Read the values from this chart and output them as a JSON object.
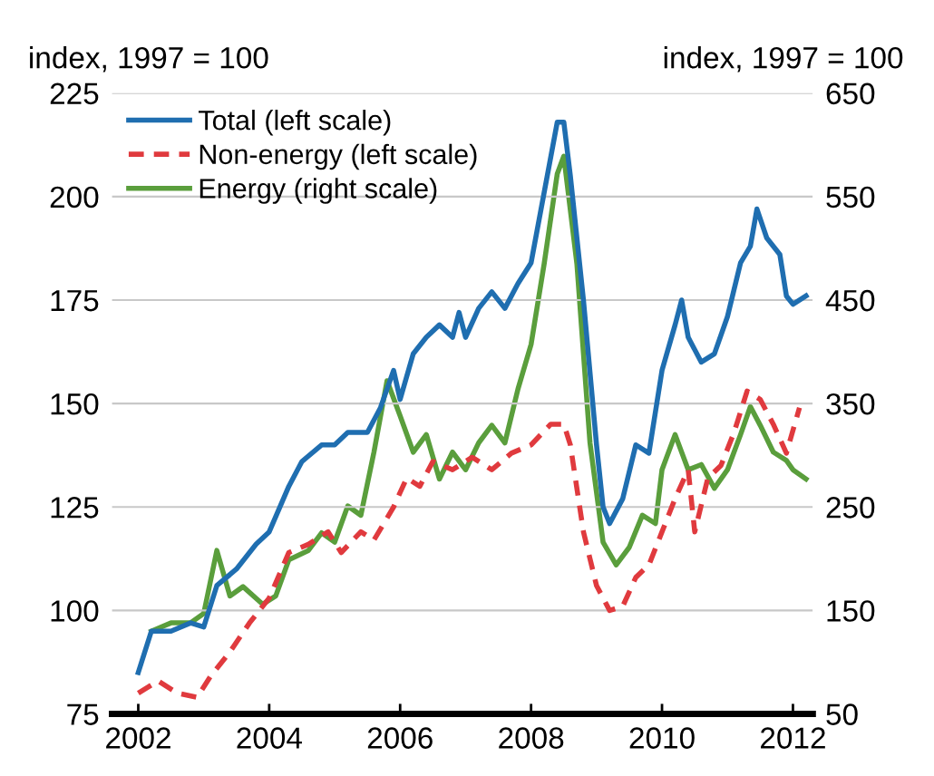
{
  "chart_data": {
    "type": "line",
    "ylabel": "index, 1997 = 100",
    "y2label": "index, 1997 = 100",
    "xlim": [
      2001.6,
      2012.3
    ],
    "xticks": [
      2002,
      2004,
      2006,
      2008,
      2010,
      2012
    ],
    "ylim": [
      75,
      225
    ],
    "yticks": [
      75,
      100,
      125,
      150,
      175,
      200,
      225
    ],
    "y2lim": [
      50,
      650
    ],
    "y2ticks": [
      50,
      150,
      250,
      350,
      450,
      550,
      650
    ],
    "grid": "y",
    "legend": "top left",
    "series": [
      {
        "name": "Total (left scale)",
        "color": "#1f6eb0",
        "line_style": "solid",
        "x": [
          2002.0,
          2002.2,
          2002.5,
          2002.8,
          2003.0,
          2003.2,
          2003.5,
          2003.8,
          2004.0,
          2004.3,
          2004.5,
          2004.8,
          2005.0,
          2005.2,
          2005.5,
          2005.7,
          2005.9,
          2006.0,
          2006.2,
          2006.4,
          2006.6,
          2006.8,
          2006.9,
          2007.0,
          2007.2,
          2007.4,
          2007.6,
          2007.8,
          2008.0,
          2008.2,
          2008.4,
          2008.5,
          2008.6,
          2008.8,
          2009.0,
          2009.1,
          2009.2,
          2009.4,
          2009.6,
          2009.8,
          2010.0,
          2010.2,
          2010.3,
          2010.4,
          2010.6,
          2010.8,
          2011.0,
          2011.2,
          2011.35,
          2011.45,
          2011.6,
          2011.8,
          2011.9,
          2012.0,
          2012.2
        ],
        "values": [
          85,
          95,
          95,
          97,
          96,
          106,
          110,
          116,
          119,
          130,
          136,
          140,
          140,
          143,
          143,
          149,
          158,
          151,
          162,
          166,
          169,
          166,
          172,
          166,
          173,
          177,
          173,
          179,
          184,
          201,
          218,
          218,
          205,
          175,
          140,
          125,
          121,
          127,
          140,
          138,
          158,
          169,
          175,
          166,
          160,
          162,
          171,
          184,
          188,
          197,
          190,
          186,
          176,
          174,
          176
        ]
      },
      {
        "name": "Non-energy (left scale)",
        "color": "#e03a3e",
        "line_style": "dashed",
        "x": [
          2002.0,
          2002.3,
          2002.6,
          2002.9,
          2003.1,
          2003.4,
          2003.7,
          2004.0,
          2004.3,
          2004.6,
          2004.9,
          2005.1,
          2005.4,
          2005.6,
          2005.9,
          2006.1,
          2006.3,
          2006.5,
          2006.8,
          2007.1,
          2007.4,
          2007.7,
          2008.0,
          2008.3,
          2008.5,
          2008.6,
          2008.8,
          2009.0,
          2009.2,
          2009.4,
          2009.6,
          2009.8,
          2010.0,
          2010.2,
          2010.4,
          2010.5,
          2010.7,
          2010.9,
          2011.1,
          2011.3,
          2011.5,
          2011.7,
          2011.9,
          2012.1
        ],
        "values": [
          80,
          83,
          80,
          79,
          84,
          90,
          97,
          103,
          114,
          116,
          119,
          114,
          119,
          117,
          125,
          132,
          130,
          136,
          134,
          137,
          134,
          138,
          140,
          145,
          145,
          140,
          119,
          106,
          100,
          101,
          108,
          111,
          119,
          127,
          134,
          119,
          132,
          135,
          143,
          153,
          151,
          145,
          138,
          149
        ]
      },
      {
        "name": "Energy (right scale)",
        "color": "#5a9e3c",
        "line_style": "solid",
        "axis": "y2",
        "x": [
          2002.2,
          2002.5,
          2002.8,
          2003.0,
          2003.2,
          2003.4,
          2003.6,
          2003.9,
          2004.1,
          2004.3,
          2004.6,
          2004.8,
          2005.0,
          2005.2,
          2005.4,
          2005.6,
          2005.8,
          2006.0,
          2006.2,
          2006.4,
          2006.6,
          2006.8,
          2007.0,
          2007.2,
          2007.4,
          2007.6,
          2007.8,
          2008.0,
          2008.2,
          2008.4,
          2008.5,
          2008.7,
          2008.9,
          2009.1,
          2009.3,
          2009.5,
          2009.7,
          2009.9,
          2010.0,
          2010.2,
          2010.4,
          2010.6,
          2010.8,
          2011.0,
          2011.2,
          2011.35,
          2011.5,
          2011.7,
          2011.9,
          2012.0,
          2012.2
        ],
        "values": [
          130,
          138,
          138,
          147,
          208,
          164,
          173,
          156,
          164,
          199,
          208,
          225,
          216,
          251,
          242,
          303,
          372,
          338,
          303,
          320,
          277,
          303,
          286,
          312,
          329,
          312,
          364,
          407,
          485,
          572,
          589,
          485,
          312,
          216,
          194,
          211,
          242,
          234,
          286,
          320,
          286,
          291,
          268,
          286,
          320,
          347,
          329,
          303,
          295,
          286,
          277
        ]
      }
    ]
  }
}
